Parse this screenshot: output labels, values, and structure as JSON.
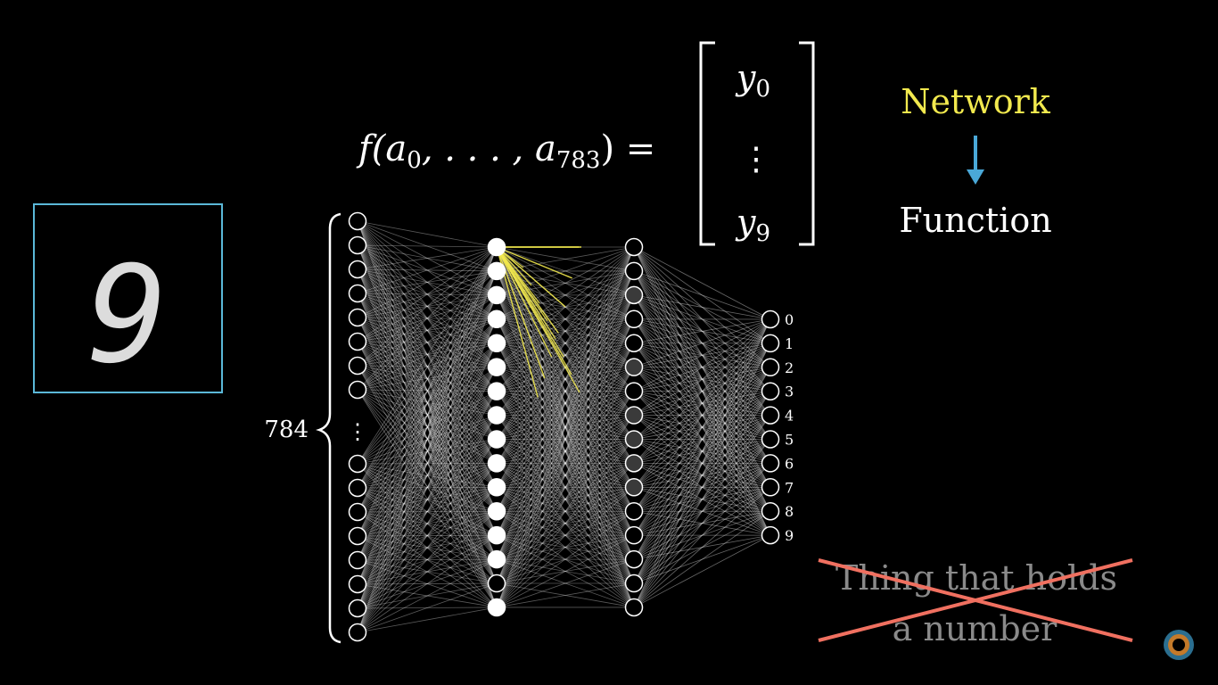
{
  "formula": {
    "lhs": "f(a",
    "sub_first": "0",
    "mid": ", . . . , a",
    "sub_last": "783",
    "rhs": ") =",
    "vector_top": "y",
    "vector_top_sub": "0",
    "vector_dots": "⋮",
    "vector_bottom": "y",
    "vector_bottom_sub": "9"
  },
  "concept": {
    "from": "Network",
    "to": "Function",
    "arrow_icon": "arrow-down-icon",
    "struck_line1": "Thing that holds",
    "struck_line2": "a number"
  },
  "network": {
    "input_count_label": "784",
    "input_dots": "⋮",
    "input_top_nodes": 8,
    "input_bottom_nodes": 8,
    "hidden1_nodes": 16,
    "hidden2_nodes": 16,
    "output_labels": [
      "0",
      "1",
      "2",
      "3",
      "4",
      "5",
      "6",
      "7",
      "8",
      "9"
    ],
    "hidden1_active": [
      0,
      1,
      2,
      3,
      4,
      5,
      6,
      7,
      8,
      9,
      10,
      11,
      12,
      13,
      15
    ]
  },
  "digit_image": {
    "digit": "9"
  },
  "colors": {
    "background": "#000000",
    "frame": "#5bb8d8",
    "yellow": "#f2e94e",
    "arrow": "#4aa8d8",
    "cross": "#f07060",
    "struck_text": "#8a8a8a"
  }
}
